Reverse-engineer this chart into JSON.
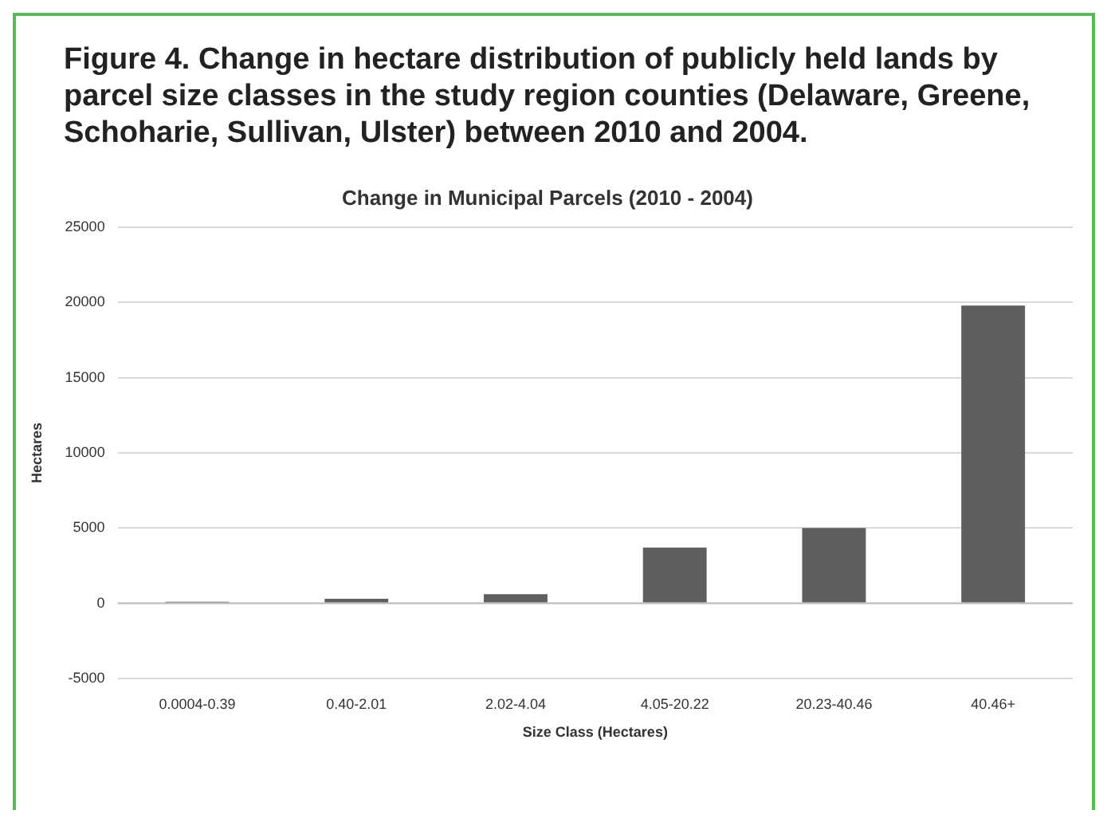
{
  "chart_data": {
    "type": "bar",
    "title": "Figure 4. Change in hectare distribution of publicly held lands by parcel size classes in the study region counties (Delaware, Greene, Schoharie, Sullivan, Ulster) between 2010 and 2004.",
    "subtitle": "Change in Municipal Parcels (2010 - 2004)",
    "xlabel": "Size Class (Hectares)",
    "ylabel": "Hectares",
    "categories": [
      "0.0004-0.39",
      "0.40-2.01",
      "2.02-4.04",
      "4.05-20.22",
      "20.23-40.46",
      "40.46+"
    ],
    "values": [
      100,
      300,
      600,
      3700,
      5000,
      19800
    ],
    "color": "#5f5f5f",
    "ylim": [
      -5000,
      25000
    ],
    "yticks": [
      -5000,
      0,
      5000,
      10000,
      15000,
      20000,
      25000
    ],
    "grid": "y",
    "legend": false
  }
}
